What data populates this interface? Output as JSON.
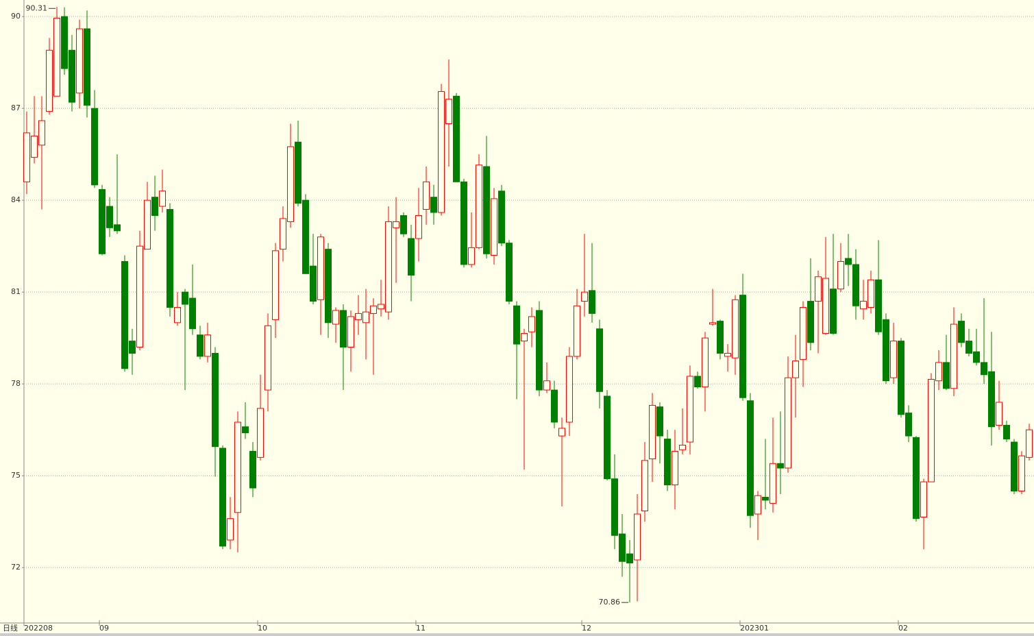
{
  "chart_data": {
    "type": "candlestick",
    "period_label": "日线",
    "categories": [
      "202208",
      null,
      null,
      null,
      null,
      null,
      null,
      null,
      null,
      null,
      "09",
      null,
      null,
      null,
      null,
      null,
      null,
      null,
      null,
      null,
      null,
      null,
      null,
      null,
      null,
      null,
      null,
      null,
      null,
      null,
      null,
      "10",
      null,
      null,
      null,
      null,
      null,
      null,
      null,
      null,
      null,
      null,
      null,
      null,
      null,
      null,
      null,
      null,
      null,
      null,
      null,
      null,
      "11",
      null,
      null,
      null,
      null,
      null,
      null,
      null,
      null,
      null,
      null,
      null,
      null,
      null,
      null,
      null,
      null,
      null,
      null,
      null,
      null,
      null,
      "12",
      null,
      null,
      null,
      null,
      null,
      null,
      null,
      null,
      null,
      null,
      null,
      null,
      null,
      null,
      null,
      null,
      null,
      null,
      null,
      null,
      "202301",
      null,
      null,
      null,
      null,
      null,
      null,
      null,
      null,
      null,
      null,
      null,
      null,
      null,
      null,
      null,
      null,
      null,
      null,
      null,
      null,
      "02",
      null,
      null,
      null,
      null,
      null,
      null,
      null,
      null,
      null,
      null,
      null,
      null,
      null,
      null,
      null,
      null,
      null
    ],
    "open": [
      84.6,
      85.4,
      85.8,
      86.9,
      87.4,
      90.0,
      88.9,
      87.5,
      89.6,
      87.0,
      84.35,
      83.8,
      83.2,
      82.0,
      79.4,
      79.2,
      82.4,
      84.1,
      83.8,
      83.7,
      80.0,
      81.0,
      80.8,
      79.6,
      78.9,
      79.0,
      75.9,
      72.9,
      73.8,
      76.6,
      75.8,
      75.6,
      77.8,
      80.1,
      82.4,
      83.3,
      85.9,
      84.0,
      81.85,
      80.75,
      82.4,
      79.95,
      80.4,
      79.2,
      80.1,
      80.0,
      80.3,
      80.45,
      80.35,
      83.1,
      83.5,
      82.75,
      82.75,
      83.7,
      84.1,
      83.6,
      86.5,
      87.4,
      84.6,
      81.9,
      82.45,
      85.1,
      82.2,
      84.3,
      82.6,
      80.55,
      79.4,
      79.7,
      80.4,
      77.8,
      77.8,
      76.3,
      76.75,
      78.9,
      80.7,
      81.05,
      79.8,
      77.6,
      74.9,
      73.1,
      72.45,
      72.25,
      73.85,
      75.55,
      77.25,
      76.2,
      74.7,
      75.85,
      76.1,
      78.25,
      77.9,
      79.95,
      80.05,
      78.9,
      78.85,
      80.9,
      77.45,
      73.75,
      74.3,
      74.1,
      75.4,
      75.25,
      78.2,
      78.8,
      80.7,
      80.7,
      79.65,
      81.1,
      81.1,
      82.1,
      81.9,
      80.45,
      80.5,
      81.4,
      80.1,
      78.2,
      79.4,
      77.05,
      76.25,
      73.65,
      74.8,
      78.1,
      78.7,
      77.85,
      80.05,
      79.4,
      79.05,
      78.7,
      78.4,
      76.65,
      76.65,
      76.1,
      74.5,
      75.6
    ],
    "high": [
      86.9,
      87.4,
      87.4,
      89.3,
      90.31,
      90.3,
      89.4,
      89.9,
      90.2,
      87.6,
      84.5,
      84.1,
      85.5,
      82.2,
      79.8,
      83.0,
      84.6,
      84.8,
      85.0,
      83.9,
      81.0,
      81.1,
      81.9,
      79.9,
      80.0,
      79.2,
      75.99,
      74.3,
      77.1,
      77.4,
      76.1,
      78.3,
      80.3,
      82.6,
      83.8,
      86.5,
      86.6,
      84.2,
      82.9,
      82.9,
      82.6,
      80.5,
      80.6,
      80.4,
      80.9,
      81.1,
      80.8,
      81.4,
      83.8,
      84.1,
      83.6,
      83.2,
      84.4,
      85.1,
      84.5,
      87.8,
      88.6,
      87.5,
      84.7,
      83.6,
      85.5,
      86.1,
      84.4,
      84.5,
      82.7,
      80.7,
      79.8,
      80.5,
      80.7,
      78.7,
      78.1,
      76.9,
      79.2,
      81.1,
      82.9,
      82.6,
      80.1,
      77.8,
      75.7,
      73.75,
      72.9,
      74.4,
      76.1,
      77.7,
      77.4,
      76.5,
      76.5,
      77.2,
      78.6,
      78.4,
      79.7,
      81.1,
      80.1,
      79.3,
      80.9,
      81.6,
      77.7,
      74.5,
      76.2,
      76.9,
      77.1,
      78.9,
      79.6,
      80.7,
      82.1,
      81.7,
      82.8,
      82.9,
      82.6,
      82.9,
      82.4,
      81.4,
      81.7,
      82.7,
      80.3,
      80.0,
      79.5,
      77.3,
      76.3,
      74.9,
      78.35,
      79.1,
      79.6,
      80.5,
      80.3,
      79.8,
      79.8,
      80.8,
      79.7,
      78.1,
      76.8,
      76.2,
      75.8,
      76.7
    ],
    "low": [
      84.2,
      85.2,
      83.7,
      86.8,
      87.4,
      88.1,
      86.9,
      87.0,
      86.7,
      84.4,
      82.2,
      82.8,
      82.9,
      78.4,
      78.3,
      79.1,
      82.4,
      83.0,
      83.6,
      80.2,
      79.9,
      77.8,
      79.6,
      78.8,
      78.7,
      74.97,
      72.6,
      72.6,
      72.5,
      76.2,
      74.3,
      75.5,
      77.1,
      79.5,
      82.0,
      83.1,
      83.8,
      81.6,
      80.6,
      79.6,
      79.5,
      79.34,
      77.8,
      78.4,
      79.6,
      78.8,
      78.3,
      80.2,
      80.1,
      81.3,
      82.8,
      80.7,
      82.0,
      83.2,
      83.2,
      83.5,
      85.1,
      84.6,
      81.8,
      81.8,
      82.4,
      82.1,
      81.9,
      82.5,
      80.6,
      77.5,
      75.2,
      79.2,
      77.6,
      77.7,
      76.55,
      74.0,
      76.3,
      78.8,
      80.2,
      80.0,
      77.2,
      74.85,
      72.6,
      71.7,
      70.86,
      70.9,
      73.5,
      74.8,
      75.4,
      74.5,
      73.9,
      75.7,
      75.7,
      77.85,
      77.1,
      79.9,
      78.8,
      78.4,
      78.3,
      77.45,
      73.3,
      72.9,
      73.9,
      73.8,
      74.4,
      75.1,
      76.9,
      77.9,
      79.1,
      79.0,
      79.6,
      79.6,
      81.0,
      81.2,
      80.1,
      80.1,
      80.3,
      79.6,
      78.0,
      78.0,
      76.9,
      76.1,
      73.5,
      72.6,
      74.8,
      77.8,
      77.8,
      77.6,
      79.2,
      78.9,
      78.6,
      78.0,
      75.99,
      76.5,
      76.1,
      74.4,
      74.4,
      75.5
    ],
    "close": [
      86.2,
      86.1,
      86.6,
      88.9,
      89.95,
      88.3,
      87.2,
      89.6,
      87.1,
      84.5,
      82.25,
      83.1,
      83.0,
      78.5,
      79.0,
      82.5,
      84.0,
      83.5,
      84.3,
      80.5,
      80.5,
      80.6,
      79.8,
      78.9,
      79.6,
      75.95,
      72.7,
      73.6,
      76.75,
      76.4,
      74.6,
      77.2,
      79.9,
      82.35,
      83.4,
      85.75,
      83.9,
      81.6,
      80.7,
      82.8,
      80.0,
      80.4,
      79.2,
      80.2,
      80.3,
      80.35,
      80.55,
      80.6,
      83.3,
      83.3,
      82.9,
      81.55,
      83.5,
      84.6,
      83.6,
      87.55,
      87.3,
      84.6,
      81.9,
      82.45,
      85.15,
      82.25,
      84.05,
      82.6,
      80.7,
      79.3,
      79.65,
      80.2,
      77.8,
      78.1,
      76.75,
      76.55,
      78.9,
      80.55,
      81.0,
      80.3,
      77.75,
      74.9,
      73.05,
      72.2,
      72.15,
      73.75,
      75.5,
      77.3,
      76.3,
      74.7,
      75.8,
      76.0,
      78.25,
      77.9,
      79.5,
      80.0,
      79.0,
      79.0,
      80.75,
      77.55,
      73.7,
      74.35,
      74.2,
      75.4,
      75.25,
      78.2,
      78.75,
      80.5,
      79.35,
      81.5,
      81.45,
      79.65,
      82.0,
      81.9,
      80.55,
      80.7,
      81.4,
      79.7,
      78.1,
      79.4,
      77.0,
      76.3,
      73.6,
      74.8,
      78.15,
      78.7,
      77.85,
      79.95,
      79.35,
      79.0,
      78.7,
      78.3,
      76.6,
      77.4,
      76.2,
      74.5,
      75.65,
      76.5
    ],
    "up_color": "#ff0000",
    "down_color": "#008000",
    "ylim": [
      70.28,
      90.54
    ],
    "yticks": [
      72,
      75,
      78,
      81,
      84,
      87,
      90
    ],
    "grid": true,
    "max_label": 90.31,
    "min_label": 70.86
  }
}
